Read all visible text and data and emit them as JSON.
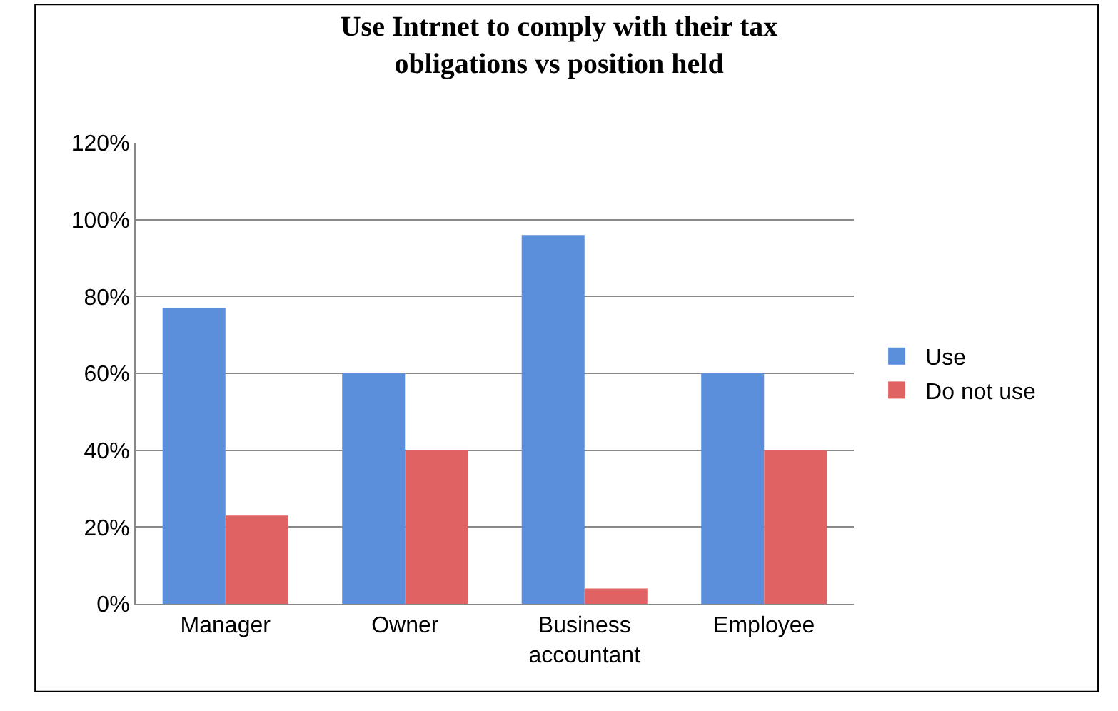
{
  "chart_data": {
    "type": "bar",
    "title": "Use Intrnet to comply with their tax obligations vs position held",
    "categories": [
      "Manager",
      "Owner",
      "Business accountant",
      "Employee"
    ],
    "series": [
      {
        "name": "Use",
        "color": "#5b8fdc",
        "values": [
          0.77,
          0.6,
          0.96,
          0.6
        ]
      },
      {
        "name": "Do not use",
        "color": "#e06262",
        "values": [
          0.23,
          0.4,
          0.04,
          0.4
        ]
      }
    ],
    "ylim": [
      0,
      1.2
    ],
    "yticks": [
      {
        "value": 0,
        "label": "0%"
      },
      {
        "value": 0.2,
        "label": "20%"
      },
      {
        "value": 0.4,
        "label": "40%"
      },
      {
        "value": 0.6,
        "label": "60%"
      },
      {
        "value": 0.8,
        "label": "80%"
      },
      {
        "value": 1,
        "label": "100%"
      },
      {
        "value": 1.2,
        "label": "120%"
      }
    ],
    "grid": "y",
    "legend": "right"
  }
}
